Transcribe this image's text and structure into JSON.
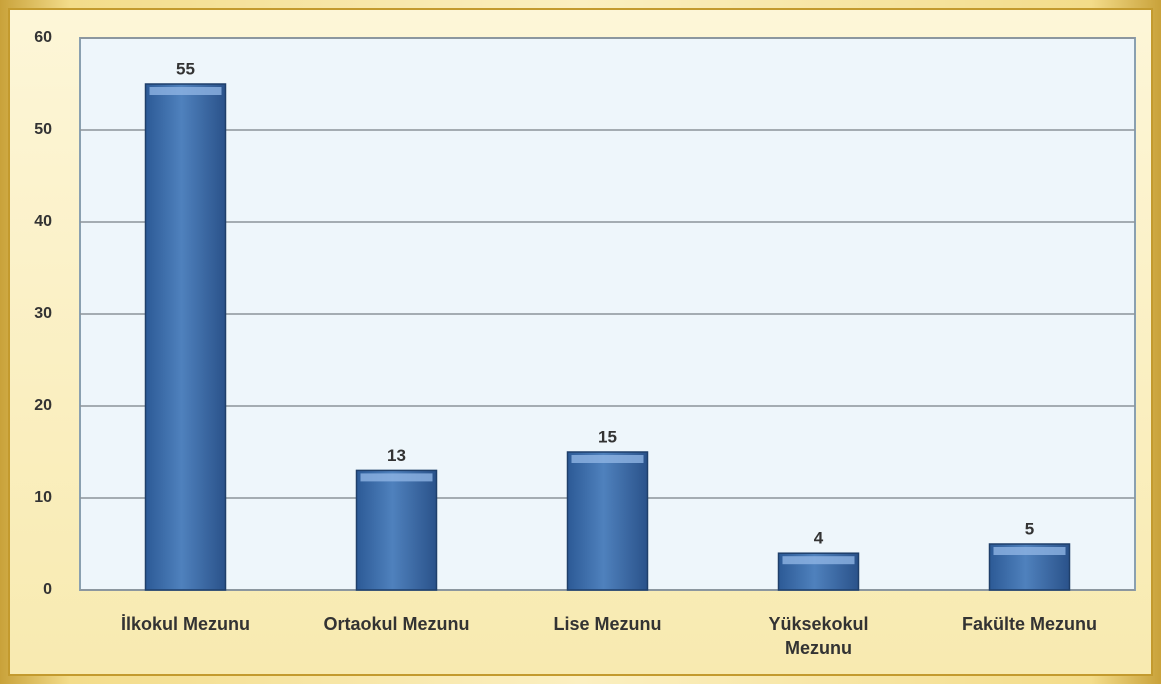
{
  "chart_data": {
    "type": "bar",
    "categories": [
      "İlkokul Mezunu",
      "Ortaokul Mezunu",
      "Lise Mezunu",
      "Yüksekokul Mezunu",
      "Fakülte Mezunu"
    ],
    "values": [
      55,
      13,
      15,
      4,
      5
    ],
    "color": "#4f81bd",
    "ylim": [
      0,
      60
    ],
    "yticks": [
      0,
      10,
      20,
      30,
      40,
      50,
      60
    ],
    "grid": true,
    "data_labels": true
  }
}
